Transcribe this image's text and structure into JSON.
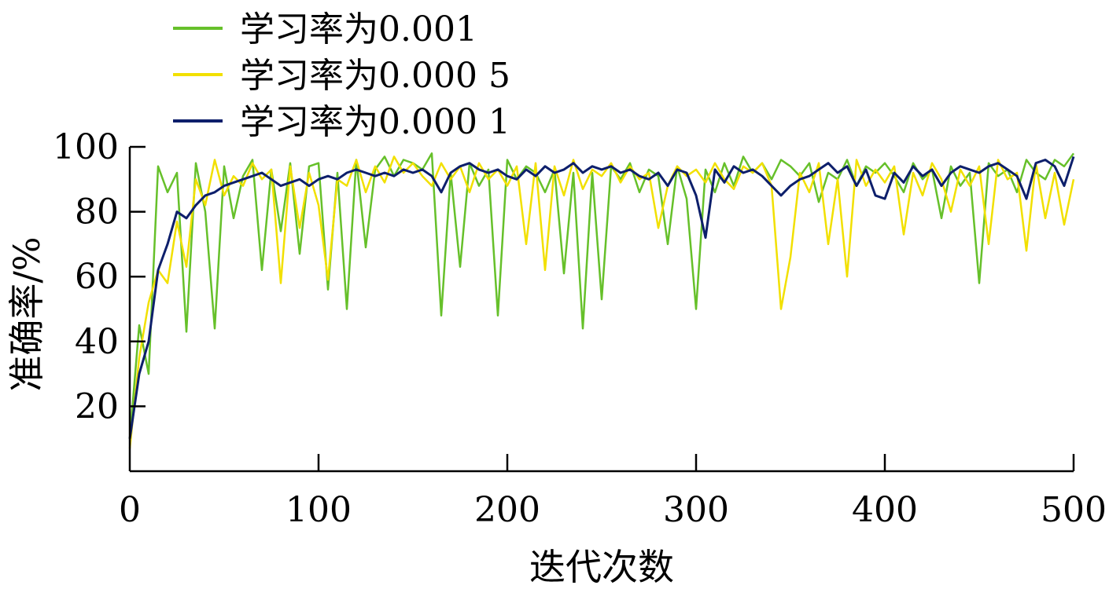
{
  "chart_data": {
    "type": "line",
    "title": "",
    "xlabel": "迭代次数",
    "ylabel": "准确率/%",
    "xlim": [
      0,
      500
    ],
    "ylim": [
      0,
      100
    ],
    "x_ticks": [
      0,
      100,
      200,
      300,
      400,
      500
    ],
    "y_ticks": [
      20,
      40,
      60,
      80,
      100
    ],
    "grid": false,
    "legend_position": "top-left",
    "x": [
      0,
      5,
      10,
      15,
      20,
      25,
      30,
      35,
      40,
      45,
      50,
      55,
      60,
      65,
      70,
      75,
      80,
      85,
      90,
      95,
      100,
      105,
      110,
      115,
      120,
      125,
      130,
      135,
      140,
      145,
      150,
      155,
      160,
      165,
      170,
      175,
      180,
      185,
      190,
      195,
      200,
      205,
      210,
      215,
      220,
      225,
      230,
      235,
      240,
      245,
      250,
      255,
      260,
      265,
      270,
      275,
      280,
      285,
      290,
      295,
      300,
      305,
      310,
      315,
      320,
      325,
      330,
      335,
      340,
      345,
      350,
      355,
      360,
      365,
      370,
      375,
      380,
      385,
      390,
      395,
      400,
      405,
      410,
      415,
      420,
      425,
      430,
      435,
      440,
      445,
      450,
      455,
      460,
      465,
      470,
      475,
      480,
      485,
      490,
      495,
      500
    ],
    "series": [
      {
        "name": "学习率为0.001",
        "color": "#66c02a",
        "values": [
          10,
          45,
          30,
          94,
          86,
          92,
          43,
          95,
          80,
          44,
          94,
          78,
          91,
          96,
          62,
          93,
          74,
          95,
          67,
          94,
          95,
          56,
          92,
          50,
          96,
          69,
          93,
          97,
          91,
          96,
          95,
          93,
          98,
          48,
          92,
          63,
          95,
          88,
          93,
          48,
          96,
          90,
          94,
          92,
          86,
          93,
          61,
          92,
          44,
          92,
          53,
          94,
          90,
          95,
          86,
          93,
          91,
          70,
          94,
          84,
          50,
          93,
          86,
          95,
          88,
          97,
          92,
          95,
          90,
          96,
          94,
          91,
          95,
          83,
          92,
          90,
          96,
          88,
          94,
          92,
          95,
          91,
          86,
          95,
          90,
          93,
          78,
          94,
          88,
          92,
          58,
          95,
          91,
          93,
          86,
          96,
          92,
          90,
          96,
          94,
          98
        ]
      },
      {
        "name": "学习率为0.000 5",
        "color": "#f2e000",
        "values": [
          7,
          35,
          52,
          62,
          58,
          77,
          63,
          90,
          82,
          96,
          85,
          91,
          88,
          95,
          90,
          93,
          58,
          94,
          75,
          92,
          82,
          59,
          90,
          88,
          96,
          86,
          94,
          89,
          97,
          92,
          95,
          91,
          88,
          95,
          90,
          94,
          86,
          95,
          90,
          93,
          88,
          94,
          70,
          95,
          62,
          94,
          85,
          96,
          87,
          93,
          91,
          95,
          89,
          94,
          90,
          92,
          75,
          88,
          94,
          91,
          93,
          89,
          95,
          90,
          87,
          94,
          92,
          95,
          88,
          50,
          66,
          92,
          86,
          95,
          70,
          90,
          60,
          96,
          88,
          93,
          89,
          94,
          73,
          92,
          85,
          95,
          90,
          80,
          93,
          88,
          94,
          70,
          96,
          90,
          92,
          68,
          95,
          78,
          92,
          76,
          90
        ]
      },
      {
        "name": "学习率为0.000 1",
        "color": "#0d1f6b",
        "values": [
          10,
          30,
          40,
          62,
          70,
          80,
          78,
          82,
          85,
          86,
          88,
          89,
          90,
          91,
          92,
          90,
          88,
          89,
          90,
          88,
          90,
          91,
          90,
          92,
          93,
          92,
          91,
          92,
          91,
          93,
          92,
          93,
          91,
          86,
          92,
          94,
          95,
          93,
          92,
          93,
          91,
          90,
          93,
          91,
          94,
          92,
          93,
          95,
          92,
          94,
          93,
          94,
          92,
          93,
          91,
          90,
          92,
          88,
          93,
          92,
          85,
          72,
          93,
          89,
          94,
          92,
          93,
          91,
          88,
          85,
          88,
          90,
          91,
          93,
          95,
          92,
          94,
          88,
          93,
          85,
          84,
          92,
          89,
          94,
          91,
          93,
          88,
          92,
          94,
          93,
          92,
          94,
          95,
          93,
          91,
          84,
          95,
          96,
          94,
          88,
          97
        ]
      }
    ]
  }
}
